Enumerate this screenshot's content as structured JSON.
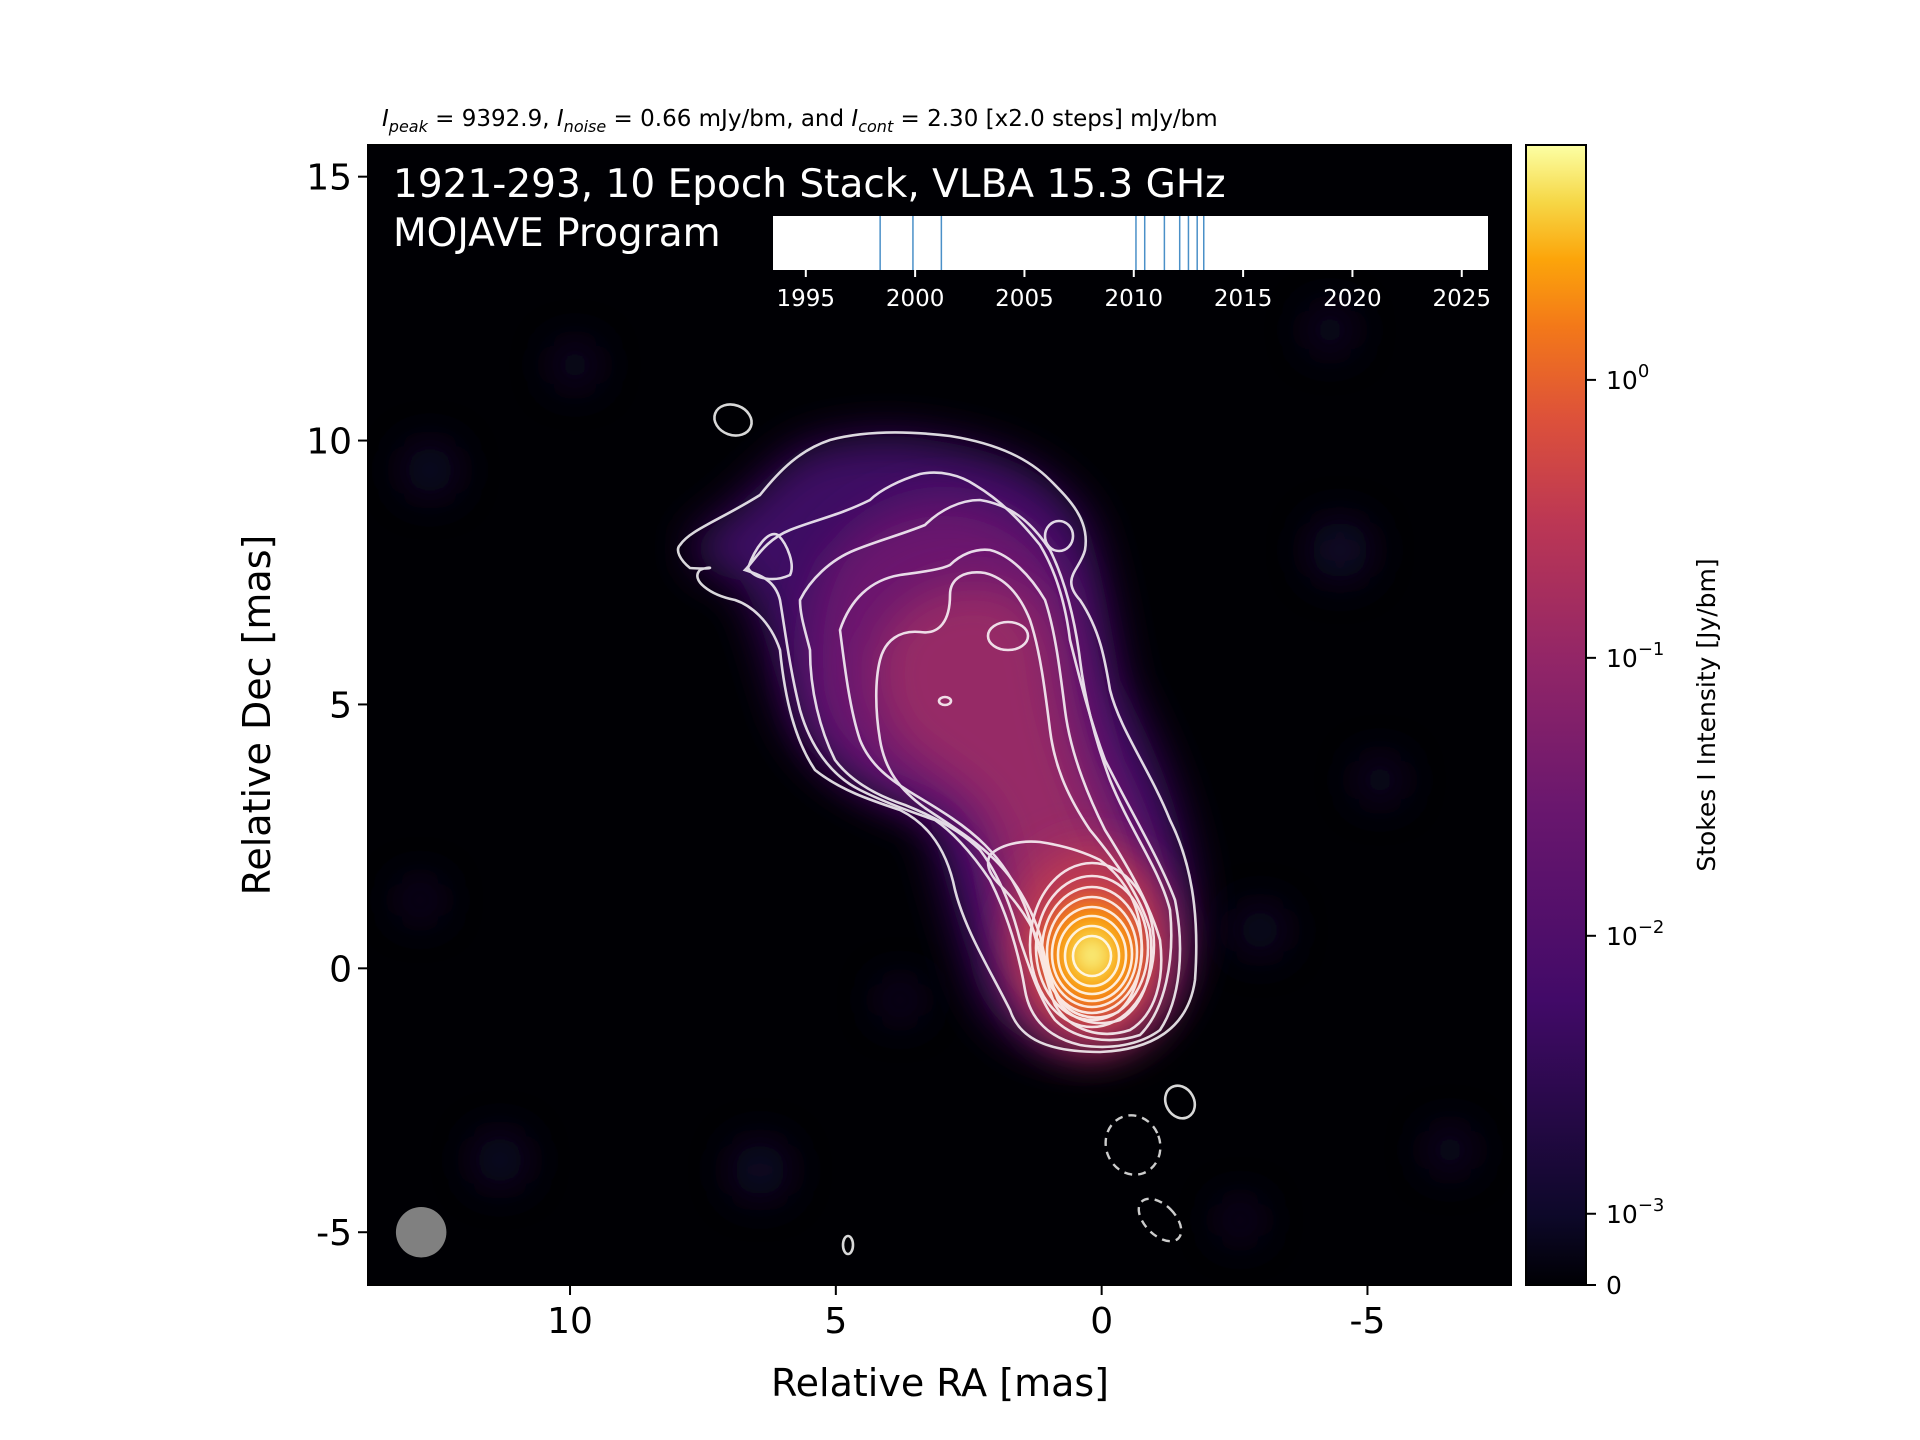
{
  "chart_data": {
    "type": "heatmap",
    "header": {
      "peak_sym": "I",
      "peak_sub": "peak",
      "peak_val": " = 9392.9, ",
      "noise_sym": "I",
      "noise_sub": "noise",
      "noise_val": " = 0.66 mJy/bm, and ",
      "cont_sym": "I",
      "cont_sub": "cont",
      "cont_val": " = 2.30 [x2.0 steps] mJy/bm"
    },
    "title_line1": "1921-293, 10 Epoch Stack, VLBA 15.3 GHz",
    "title_line2": "MOJAVE Program",
    "xlabel": "Relative RA [mas]",
    "ylabel": "Relative Dec [mas]",
    "xlim": [
      13.8,
      -7.7
    ],
    "ylim": [
      -6.0,
      15.6
    ],
    "x_ticks": [
      10,
      5,
      0,
      -5
    ],
    "x_tick_labels": [
      "10",
      "5",
      "0",
      "-5"
    ],
    "y_ticks": [
      15,
      10,
      5,
      0,
      -5
    ],
    "y_tick_labels": [
      "15",
      "10",
      "5",
      "0",
      "-5"
    ],
    "colormap": "inferno",
    "colorbar": {
      "label": "Stokes I Intensity [Jy/bm]",
      "scale": "symlog",
      "ticks": [
        {
          "base": "10",
          "exp": "0"
        },
        {
          "base": "10",
          "exp": "−1"
        },
        {
          "base": "10",
          "exp": "−2"
        },
        {
          "base": "10",
          "exp": "−3"
        },
        {
          "base": "0",
          "exp": ""
        }
      ],
      "tick_values": [
        1,
        0.1,
        0.01,
        0.001,
        0
      ]
    },
    "timeline": {
      "xlim": [
        1993.5,
        2026.2
      ],
      "ticks": [
        1995,
        2000,
        2005,
        2010,
        2015,
        2020,
        2025
      ],
      "tick_labels": [
        "1995",
        "2000",
        "2005",
        "2010",
        "2015",
        "2020",
        "2025"
      ],
      "epochs": [
        1998.4,
        1999.9,
        2001.2,
        2010.1,
        2010.5,
        2011.4,
        2012.1,
        2012.5,
        2012.9,
        2013.2
      ],
      "epoch_color": "#4a90c8"
    },
    "beam": {
      "ra": 12.8,
      "dec": -5.0,
      "diameter_mas": 0.95,
      "color": "#808080"
    },
    "peak_position": {
      "ra": 0.0,
      "dec": 0.1
    }
  }
}
